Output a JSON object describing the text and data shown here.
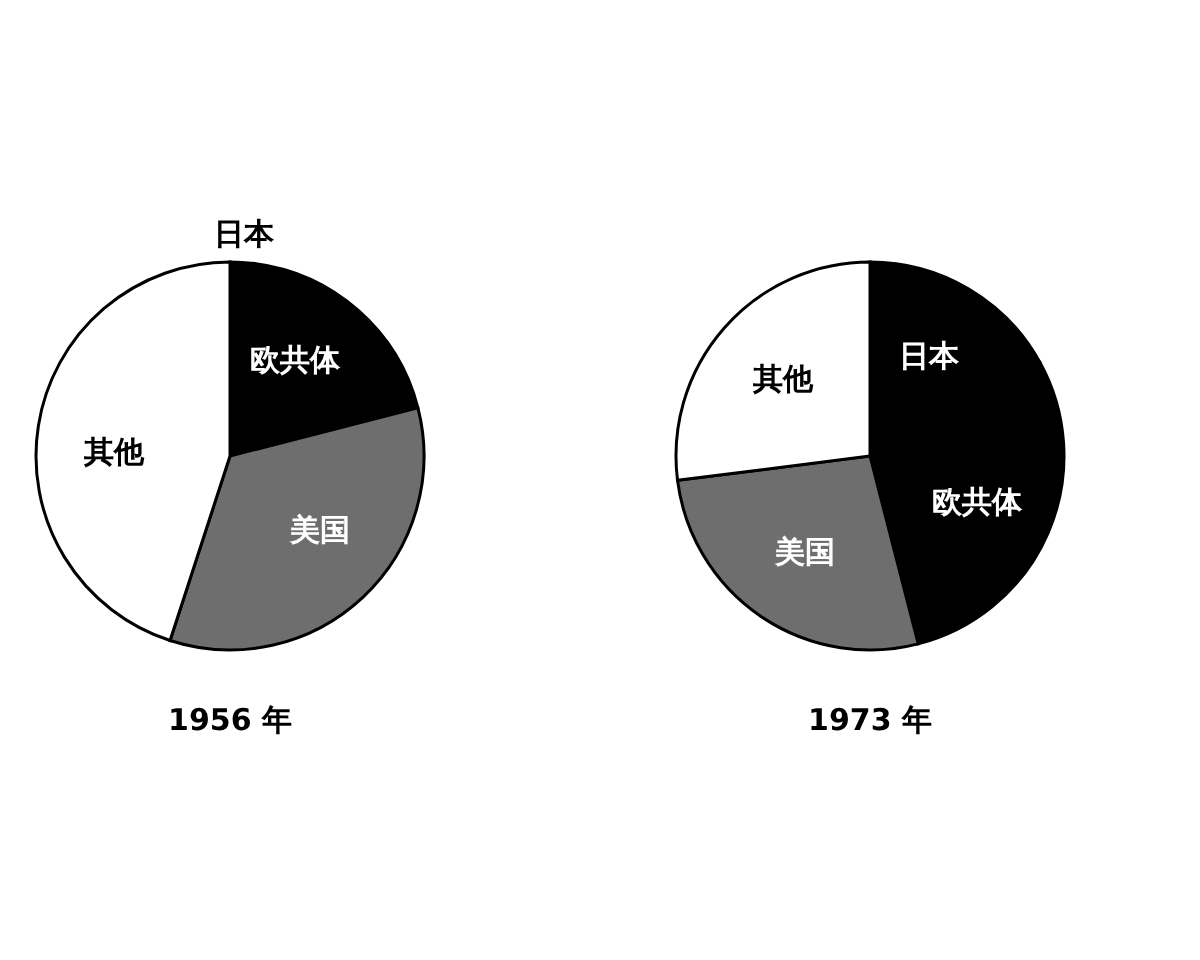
{
  "chart_data": [
    {
      "type": "pie",
      "title": "1956 年",
      "categories": [
        "日本",
        "欧共体",
        "美国",
        "其他"
      ],
      "values": [
        2,
        19,
        34,
        45
      ],
      "colors": [
        "#000000",
        "#000000",
        "#6e6e6e",
        "#ffffff"
      ]
    },
    {
      "type": "pie",
      "title": "1973 年",
      "categories": [
        "日本",
        "欧共体",
        "美国",
        "其他"
      ],
      "values": [
        17,
        29,
        27,
        27
      ],
      "colors": [
        "#000000",
        "#000000",
        "#6e6e6e",
        "#ffffff"
      ]
    }
  ]
}
